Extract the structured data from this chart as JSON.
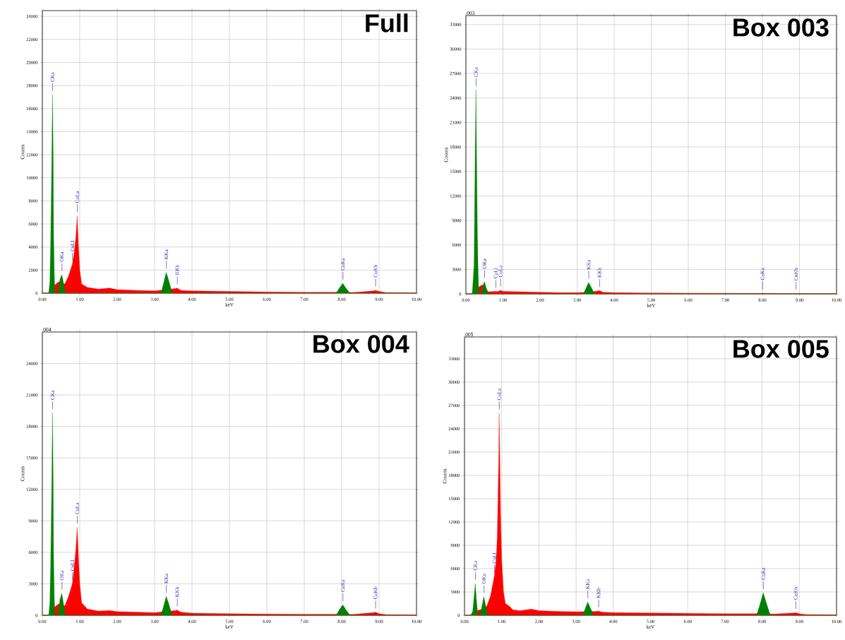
{
  "chart_data": [
    {
      "type": "area",
      "title": "Full",
      "xlabel": "keV",
      "ylabel": "Counts",
      "xlim": [
        0,
        10
      ],
      "ylim": [
        0,
        24500
      ],
      "grid": true,
      "xticks": [
        {
          "value": 0,
          "label": "0.00"
        },
        {
          "value": 1,
          "label": "1.00"
        },
        {
          "value": 2,
          "label": "2.00"
        },
        {
          "value": 3,
          "label": "3.00"
        },
        {
          "value": 4,
          "label": "4.00"
        },
        {
          "value": 5,
          "label": "5.00"
        },
        {
          "value": 6,
          "label": "6.00"
        },
        {
          "value": 7,
          "label": "7.00"
        },
        {
          "value": 8,
          "label": "8.00"
        },
        {
          "value": 9,
          "label": "9.00"
        },
        {
          "value": 10,
          "label": "10.00"
        }
      ],
      "yticks": [
        0,
        2000,
        4000,
        6000,
        8000,
        10000,
        12000,
        14000,
        16000,
        18000,
        20000,
        22000,
        24000
      ],
      "series": [
        {
          "color": "#ff0000",
          "x": [
            0,
            0.15,
            0.2,
            0.3,
            0.4,
            0.45,
            0.6,
            0.7,
            0.8,
            0.85,
            0.9,
            0.93,
            0.96,
            1.0,
            1.05,
            1.2,
            1.5,
            1.8,
            2.0,
            2.5,
            3.0,
            3.55,
            3.6,
            3.7,
            4.0,
            5.0,
            6.0,
            7.0,
            7.8,
            8.0,
            8.3,
            8.85,
            8.9,
            9.0,
            9.2,
            10
          ],
          "values": [
            0,
            0,
            200,
            600,
            900,
            1000,
            800,
            1500,
            2500,
            3500,
            5000,
            6700,
            4500,
            2000,
            800,
            500,
            350,
            450,
            300,
            250,
            200,
            400,
            450,
            250,
            200,
            150,
            100,
            80,
            80,
            100,
            60,
            200,
            250,
            150,
            50,
            30
          ]
        },
        {
          "color": "#008000",
          "x": [
            0,
            0.17,
            0.2,
            0.22,
            0.25,
            0.27,
            0.28,
            0.29,
            0.3,
            0.32,
            0.34,
            0.42,
            0.47,
            0.52,
            0.57,
            0.62,
            3.17,
            3.25,
            3.31,
            3.37,
            3.47,
            7.85,
            7.95,
            8.03,
            8.1,
            8.22,
            10
          ],
          "values": [
            0,
            0,
            1000,
            4000,
            11000,
            17200,
            15000,
            12000,
            5500,
            1500,
            0,
            0,
            1200,
            1600,
            800,
            0,
            0,
            1000,
            1800,
            1200,
            0,
            0,
            500,
            850,
            500,
            0,
            0
          ]
        }
      ],
      "annotations": [
        {
          "text": "CKa",
          "x": 0.27,
          "y": 17200
        },
        {
          "text": "OKa",
          "x": 0.52,
          "y": 1600
        },
        {
          "text": "CuLl",
          "x": 0.8,
          "y": 2500
        },
        {
          "text": "CuLa",
          "x": 0.93,
          "y": 6700
        },
        {
          "text": "KKa",
          "x": 3.31,
          "y": 1800
        },
        {
          "text": "KKb",
          "x": 3.6,
          "y": 450
        },
        {
          "text": "CuKa",
          "x": 8.03,
          "y": 850
        },
        {
          "text": "CuKb",
          "x": 8.9,
          "y": 250
        }
      ]
    },
    {
      "type": "area",
      "title": "Box 003",
      "subtitle": "003",
      "xlabel": "keV",
      "ylabel": "Counts",
      "xlim": [
        0,
        10
      ],
      "ylim": [
        0,
        34100
      ],
      "grid": true,
      "xticks": [
        {
          "value": 0,
          "label": "0.00"
        },
        {
          "value": 1,
          "label": "1.00"
        },
        {
          "value": 2,
          "label": "2.00"
        },
        {
          "value": 3,
          "label": "3.00"
        },
        {
          "value": 4,
          "label": "4.00"
        },
        {
          "value": 5,
          "label": "5.00"
        },
        {
          "value": 6,
          "label": "6.00"
        },
        {
          "value": 7,
          "label": "7.00"
        },
        {
          "value": 8,
          "label": "8.00"
        },
        {
          "value": 9,
          "label": "9.00"
        },
        {
          "value": 10,
          "label": "10.00"
        }
      ],
      "yticks": [
        0,
        3000,
        6000,
        9000,
        12000,
        15000,
        18000,
        21000,
        24000,
        27000,
        30000,
        33000
      ],
      "series": [
        {
          "color": "#ff0000",
          "x": [
            0,
            0.15,
            0.2,
            0.3,
            0.4,
            0.45,
            0.55,
            0.6,
            0.8,
            0.88,
            0.93,
            1.0,
            1.5,
            2.0,
            2.5,
            3.0,
            3.3,
            3.55,
            3.6,
            3.7,
            4.0,
            5.0,
            6.0,
            7.0,
            8.0,
            8.5,
            8.9,
            10
          ],
          "values": [
            0,
            0,
            300,
            700,
            1000,
            1100,
            600,
            250,
            300,
            300,
            450,
            300,
            250,
            200,
            150,
            150,
            200,
            350,
            400,
            200,
            150,
            100,
            80,
            60,
            60,
            50,
            50,
            30
          ]
        },
        {
          "color": "#008000",
          "x": [
            0,
            0.17,
            0.22,
            0.25,
            0.27,
            0.29,
            0.31,
            0.33,
            0.35,
            0.42,
            0.47,
            0.5,
            0.55,
            0.6,
            3.17,
            3.25,
            3.31,
            3.37,
            3.47,
            7.95,
            8.0,
            8.05,
            10
          ],
          "values": [
            0,
            0,
            3500,
            17500,
            25000,
            16000,
            7500,
            2500,
            0,
            0,
            1200,
            1500,
            700,
            0,
            0,
            800,
            1400,
            900,
            0,
            0,
            100,
            0,
            0
          ]
        }
      ],
      "annotations": [
        {
          "text": "CKa",
          "x": 0.27,
          "y": 25000
        },
        {
          "text": "OKa",
          "x": 0.5,
          "y": 1500
        },
        {
          "text": "CuLl",
          "x": 0.8,
          "y": 300
        },
        {
          "text": "CuLa",
          "x": 0.93,
          "y": 450
        },
        {
          "text": "KKa",
          "x": 3.31,
          "y": 1400
        },
        {
          "text": "KKb",
          "x": 3.6,
          "y": 400
        },
        {
          "text": "CuKa",
          "x": 8.0,
          "y": 100
        },
        {
          "text": "CuKb",
          "x": 8.9,
          "y": 50
        }
      ]
    },
    {
      "type": "area",
      "title": "Box 004",
      "subtitle": "004",
      "xlabel": "keV",
      "ylabel": "Counts",
      "xlim": [
        0,
        10
      ],
      "ylim": [
        0,
        27000
      ],
      "grid": true,
      "xticks": [
        {
          "value": 0,
          "label": "0.00"
        },
        {
          "value": 1,
          "label": "1.00"
        },
        {
          "value": 2,
          "label": "2.00"
        },
        {
          "value": 3,
          "label": "3.00"
        },
        {
          "value": 4,
          "label": "4.00"
        },
        {
          "value": 5,
          "label": "5.00"
        },
        {
          "value": 6,
          "label": "6.00"
        },
        {
          "value": 7,
          "label": "7.00"
        },
        {
          "value": 8,
          "label": "8.00"
        },
        {
          "value": 9,
          "label": "9.00"
        },
        {
          "value": 10,
          "label": "10.00"
        }
      ],
      "yticks": [
        0,
        3000,
        6000,
        9000,
        12000,
        15000,
        18000,
        21000,
        24000
      ],
      "series": [
        {
          "color": "#ff0000",
          "x": [
            0,
            0.15,
            0.2,
            0.3,
            0.4,
            0.45,
            0.6,
            0.7,
            0.8,
            0.85,
            0.9,
            0.93,
            0.96,
            1.0,
            1.05,
            1.2,
            1.5,
            1.8,
            2.0,
            2.5,
            3.0,
            3.55,
            3.6,
            3.7,
            4.0,
            5.0,
            6.0,
            7.0,
            8.0,
            8.3,
            8.85,
            8.9,
            9.0,
            9.2,
            10
          ],
          "values": [
            0,
            0,
            200,
            700,
            1000,
            1100,
            900,
            1800,
            3000,
            4500,
            6500,
            8400,
            6000,
            3000,
            1200,
            600,
            400,
            450,
            350,
            300,
            250,
            450,
            500,
            300,
            200,
            150,
            120,
            100,
            100,
            80,
            250,
            300,
            150,
            60,
            40
          ]
        },
        {
          "color": "#008000",
          "x": [
            0,
            0.17,
            0.2,
            0.22,
            0.25,
            0.27,
            0.28,
            0.29,
            0.3,
            0.32,
            0.34,
            0.42,
            0.47,
            0.52,
            0.57,
            0.62,
            3.17,
            3.25,
            3.31,
            3.37,
            3.47,
            7.85,
            7.95,
            8.03,
            8.1,
            8.22,
            10
          ],
          "values": [
            0,
            0,
            1200,
            4500,
            12000,
            19300,
            16500,
            13000,
            6000,
            1500,
            0,
            0,
            1500,
            2100,
            1000,
            0,
            0,
            1000,
            1800,
            1200,
            0,
            0,
            600,
            1000,
            600,
            0,
            0
          ]
        }
      ],
      "annotations": [
        {
          "text": "CKa",
          "x": 0.27,
          "y": 19300
        },
        {
          "text": "OKa",
          "x": 0.52,
          "y": 2100
        },
        {
          "text": "CuLl",
          "x": 0.8,
          "y": 3000
        },
        {
          "text": "CuLa",
          "x": 0.93,
          "y": 8400
        },
        {
          "text": "KKa",
          "x": 3.31,
          "y": 1800
        },
        {
          "text": "KKb",
          "x": 3.6,
          "y": 500
        },
        {
          "text": "CuKa",
          "x": 8.03,
          "y": 1000
        },
        {
          "text": "CuKb",
          "x": 8.9,
          "y": 300
        }
      ]
    },
    {
      "type": "area",
      "title": "Box 005",
      "subtitle": "005",
      "xlabel": "keV",
      "ylabel": "Counts",
      "xlim": [
        0,
        10
      ],
      "ylim": [
        0,
        35800
      ],
      "grid": true,
      "xticks": [
        {
          "value": 0,
          "label": "0.00"
        },
        {
          "value": 1,
          "label": "1.00"
        },
        {
          "value": 2,
          "label": "2.00"
        },
        {
          "value": 3,
          "label": "3.00"
        },
        {
          "value": 4,
          "label": "4.00"
        },
        {
          "value": 5,
          "label": "5.00"
        },
        {
          "value": 6,
          "label": "6.00"
        },
        {
          "value": 7,
          "label": "7.00"
        },
        {
          "value": 8,
          "label": "8.00"
        },
        {
          "value": 9,
          "label": "9.00"
        },
        {
          "value": 10,
          "label": "10.00"
        }
      ],
      "yticks": [
        0,
        3000,
        6000,
        9000,
        12000,
        15000,
        18000,
        21000,
        24000,
        27000,
        30000,
        33000
      ],
      "series": [
        {
          "color": "#ff0000",
          "x": [
            0,
            0.15,
            0.2,
            0.3,
            0.4,
            0.5,
            0.6,
            0.7,
            0.8,
            0.85,
            0.88,
            0.9,
            0.92,
            0.93,
            0.95,
            0.97,
            1.0,
            1.05,
            1.1,
            1.2,
            1.3,
            1.5,
            1.8,
            2.0,
            2.5,
            3.0,
            3.55,
            3.6,
            3.7,
            4.0,
            5.0,
            6.0,
            7.0,
            7.8,
            8.0,
            8.3,
            8.85,
            8.9,
            9.0,
            9.2,
            10
          ],
          "values": [
            0,
            0,
            200,
            500,
            700,
            800,
            1200,
            2500,
            5000,
            7000,
            10000,
            15000,
            20000,
            26000,
            20000,
            13000,
            7000,
            3000,
            1500,
            1200,
            700,
            600,
            800,
            600,
            500,
            450,
            500,
            550,
            400,
            350,
            300,
            250,
            200,
            200,
            250,
            150,
            300,
            350,
            200,
            100,
            60
          ]
        },
        {
          "color": "#008000",
          "x": [
            0,
            0.17,
            0.22,
            0.25,
            0.29,
            0.32,
            0.36,
            0.42,
            0.47,
            0.52,
            0.57,
            0.62,
            3.17,
            3.25,
            3.31,
            3.37,
            3.47,
            7.85,
            7.93,
            8.03,
            8.1,
            8.22,
            10
          ],
          "values": [
            0,
            0,
            500,
            2000,
            4100,
            2000,
            0,
            0,
            1200,
            2400,
            1200,
            0,
            0,
            900,
            1700,
            1100,
            0,
            0,
            1200,
            2900,
            1800,
            0,
            0
          ]
        }
      ],
      "annotations": [
        {
          "text": "CKa",
          "x": 0.29,
          "y": 4100
        },
        {
          "text": "OKa",
          "x": 0.52,
          "y": 2400
        },
        {
          "text": "CuLl",
          "x": 0.8,
          "y": 5000
        },
        {
          "text": "CuLa",
          "x": 0.93,
          "y": 26000
        },
        {
          "text": "KKa",
          "x": 3.31,
          "y": 1700
        },
        {
          "text": "KKb",
          "x": 3.6,
          "y": 550
        },
        {
          "text": "CuKa",
          "x": 8.03,
          "y": 2900
        },
        {
          "text": "CuKb",
          "x": 8.9,
          "y": 350
        }
      ]
    }
  ]
}
